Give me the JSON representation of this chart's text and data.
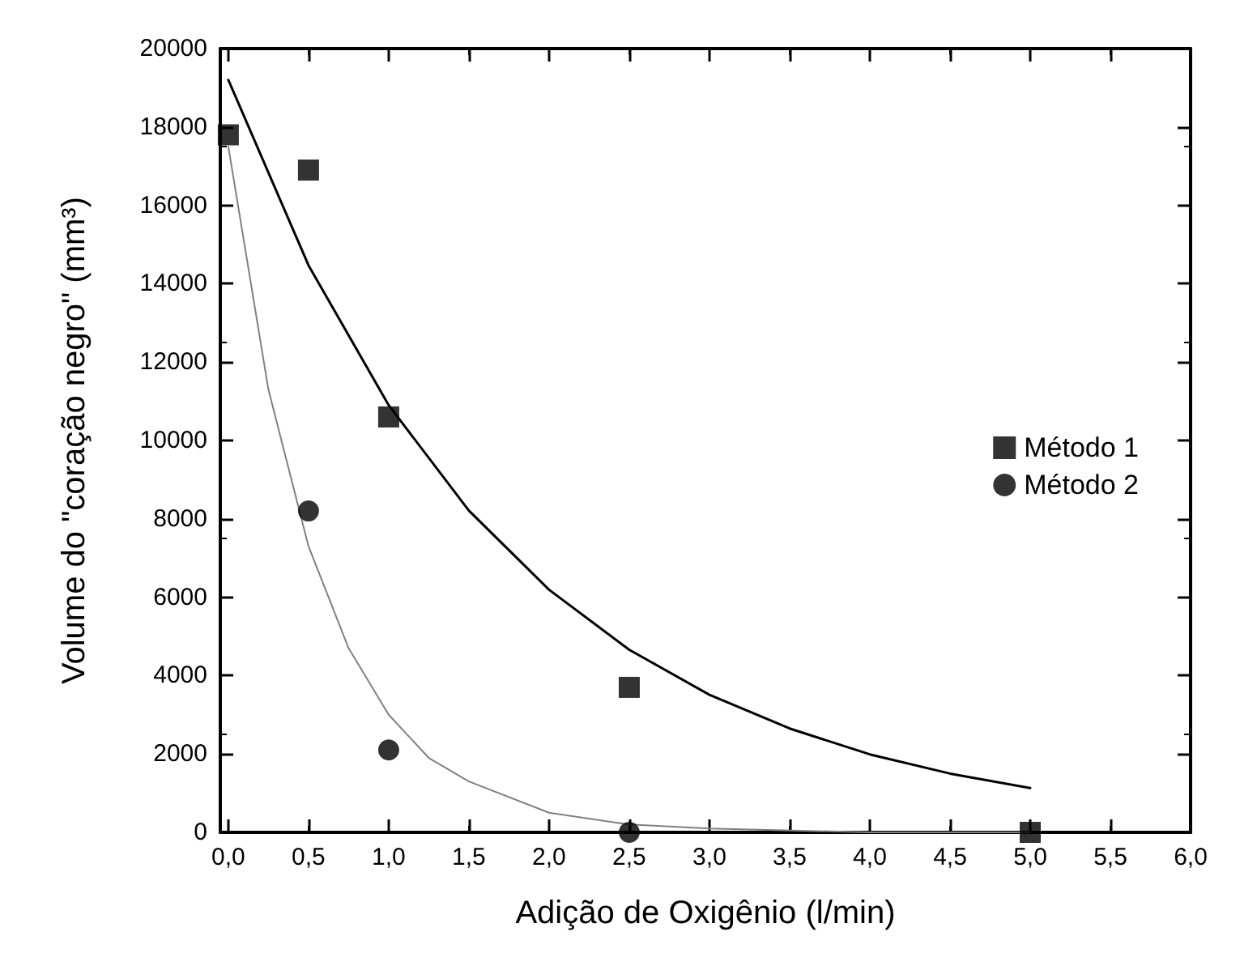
{
  "chart_data": {
    "type": "scatter",
    "xlabel": "Adição de Oxigênio (l/min)",
    "ylabel": "Volume do \"coração negro\" (mm³)",
    "xlim": [
      -0.05,
      6
    ],
    "ylim": [
      0,
      20000
    ],
    "xticks": [
      {
        "value": 0,
        "label": "0,0"
      },
      {
        "value": 0.5,
        "label": "0,5"
      },
      {
        "value": 1,
        "label": "1,0"
      },
      {
        "value": 1.5,
        "label": "1,5"
      },
      {
        "value": 2,
        "label": "2,0"
      },
      {
        "value": 2.5,
        "label": "2,5"
      },
      {
        "value": 3,
        "label": "3,0"
      },
      {
        "value": 3.5,
        "label": "3,5"
      },
      {
        "value": 4,
        "label": "4,0"
      },
      {
        "value": 4.5,
        "label": "4,5"
      },
      {
        "value": 5,
        "label": "5,0"
      },
      {
        "value": 5.5,
        "label": "5,5"
      },
      {
        "value": 6,
        "label": "6,0"
      }
    ],
    "yticks": [
      0,
      2000,
      4000,
      6000,
      8000,
      10000,
      12000,
      14000,
      16000,
      18000,
      20000
    ],
    "legend": "right",
    "grid": false,
    "series": [
      {
        "name": "Método 1",
        "color": "#000000",
        "marker": "square",
        "x": [
          0,
          0.5,
          1,
          2.5,
          5
        ],
        "values": [
          17800,
          16900,
          10600,
          3700,
          0
        ]
      },
      {
        "name": "Método 2",
        "color": "#000000",
        "marker": "circle",
        "x": [
          0.5,
          1,
          2.5
        ],
        "values": [
          8200,
          2100,
          0
        ]
      },
      {
        "type": "line",
        "color": "#000000",
        "marker": "none",
        "x": [
          0,
          0.5,
          1,
          1.5,
          2,
          2.5,
          3,
          3.5,
          4,
          4.5,
          5
        ],
        "values": [
          19200,
          14470,
          10900,
          8210,
          6190,
          4660,
          3510,
          2650,
          1990,
          1500,
          1130
        ]
      },
      {
        "type": "line",
        "color": "#808080",
        "marker": "none",
        "x": [
          0,
          0.25,
          0.5,
          0.75,
          1,
          1.25,
          1.5,
          2,
          2.5,
          3,
          4,
          5
        ],
        "values": [
          17500,
          11300,
          7300,
          4700,
          3000,
          1900,
          1300,
          500,
          200,
          100,
          0,
          0
        ]
      }
    ]
  }
}
